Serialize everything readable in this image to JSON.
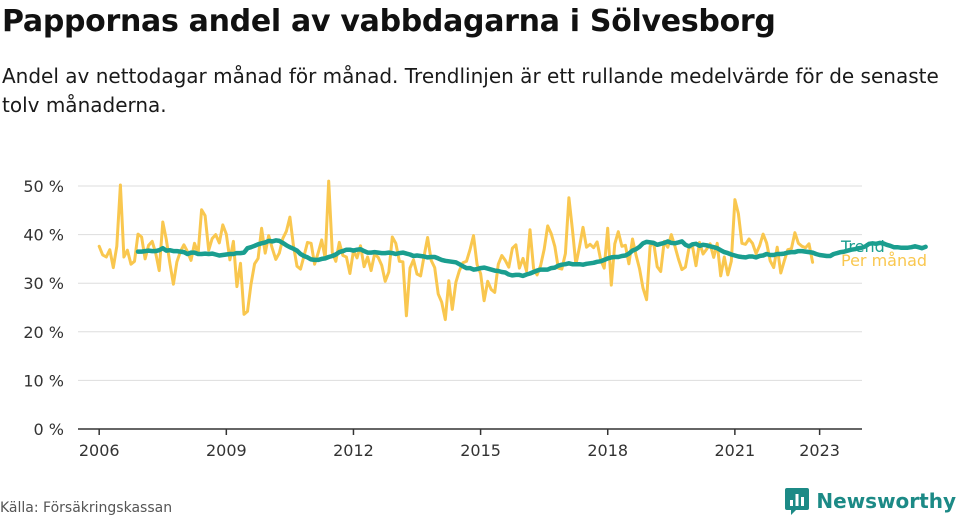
{
  "header": {
    "title": "Pappornas andel av vabbdagarna i Sölvesborg",
    "subtitle": "Andel av nettodagar månad för månad. Trendlinjen är ett rullande medelvärde för de senaste tolv månaderna."
  },
  "footer": {
    "source": "Källa: Försäkringskassan",
    "brand": "Newsworthy"
  },
  "colors": {
    "monthly": "#f9c74f",
    "trend": "#1a9e8f",
    "grid": "#dddddd",
    "axis": "#333333",
    "brand": "#1c8a86"
  },
  "chart_data": {
    "type": "line",
    "title": "Pappornas andel av vabbdagarna i Sölvesborg",
    "xlabel": "",
    "ylabel": "",
    "x_range": [
      2005.5,
      2024.0
    ],
    "ylim": [
      0,
      50
    ],
    "y_ticks": [
      0,
      10,
      20,
      30,
      40,
      50
    ],
    "y_tick_labels": [
      "0 %",
      "10 %",
      "20 %",
      "30 %",
      "40 %",
      "50 %"
    ],
    "x_ticks": [
      2006,
      2009,
      2012,
      2015,
      2018,
      2021,
      2023
    ],
    "x_tick_labels": [
      "2006",
      "2009",
      "2012",
      "2015",
      "2018",
      "2021",
      "2023"
    ],
    "grid": true,
    "legend": "right-end labels",
    "series": [
      {
        "name": "Per månad",
        "start": 2006.0,
        "step": 0.0833333,
        "values": [
          37.6,
          35.8,
          35.4,
          36.9,
          33.2,
          37.6,
          50.2,
          35.4,
          36.8,
          33.9,
          34.5,
          40.1,
          39.5,
          35.0,
          37.8,
          38.6,
          36.2,
          32.6,
          42.6,
          39.0,
          34.2,
          29.8,
          34.4,
          36.5,
          37.9,
          36.5,
          34.7,
          38.2,
          36.1,
          45.1,
          43.9,
          36.8,
          39.2,
          40.0,
          38.3,
          42.0,
          40.1,
          34.8,
          38.6,
          29.3,
          34.1,
          23.6,
          24.2,
          29.8,
          34.0,
          35.1,
          41.3,
          36.2,
          39.8,
          37.2,
          34.9,
          36.2,
          39.2,
          40.7,
          43.6,
          37.8,
          33.5,
          32.9,
          35.6,
          38.4,
          38.2,
          33.9,
          36.2,
          38.9,
          35.1,
          51.0,
          36.3,
          34.5,
          38.4,
          35.7,
          35.4,
          32.0,
          36.7,
          35.2,
          37.7,
          33.4,
          35.4,
          32.6,
          36.0,
          35.3,
          33.7,
          30.4,
          32.3,
          39.5,
          38.2,
          34.5,
          34.4,
          23.3,
          33.1,
          34.8,
          31.9,
          31.5,
          35.6,
          39.4,
          34.7,
          33.2,
          27.8,
          26.1,
          22.5,
          30.5,
          24.6,
          30.2,
          32.6,
          34.2,
          34.5,
          36.9,
          39.8,
          33.8,
          32.0,
          26.4,
          30.4,
          28.7,
          28.1,
          33.9,
          35.7,
          34.7,
          33.3,
          37.2,
          37.9,
          33.1,
          35.1,
          32.5,
          41.0,
          33.0,
          31.7,
          33.6,
          37.0,
          41.8,
          40.2,
          37.6,
          33.1,
          32.9,
          36.1,
          47.6,
          41.1,
          33.8,
          37.5,
          41.5,
          37.4,
          38.0,
          37.3,
          38.5,
          34.8,
          33.1,
          41.3,
          29.6,
          38.1,
          40.6,
          37.6,
          37.8,
          34.0,
          39.1,
          35.8,
          33.0,
          29.0,
          26.6,
          37.6,
          38.4,
          33.4,
          32.4,
          38.6,
          37.4,
          40.0,
          37.7,
          35.0,
          32.8,
          33.3,
          37.3,
          37.6,
          33.6,
          38.4,
          36.0,
          37.0,
          38.1,
          35.3,
          38.2,
          31.5,
          35.4,
          31.7,
          34.5,
          47.2,
          44.3,
          38.2,
          38.0,
          39.1,
          38.2,
          36.1,
          37.7,
          40.1,
          38.3,
          34.6,
          33.2,
          37.4,
          32.1,
          34.6,
          36.9,
          37.1,
          40.4,
          38.2,
          37.6,
          37.3,
          38.1,
          34.3
        ]
      },
      {
        "name": "Trend",
        "start": 2006.9167,
        "step": 0.0833333,
        "values": [
          36.5,
          36.5,
          36.6,
          36.7,
          36.6,
          36.6,
          36.8,
          37.2,
          36.7,
          36.8,
          36.6,
          36.6,
          36.5,
          36.4,
          36.0,
          36.3,
          36.3,
          36.0,
          36.0,
          36.1,
          36.0,
          36.1,
          35.9,
          35.7,
          35.8,
          35.9,
          36.0,
          36.0,
          36.2,
          36.2,
          36.3,
          37.2,
          37.4,
          37.7,
          38.0,
          38.2,
          38.4,
          38.7,
          38.6,
          38.8,
          38.7,
          38.3,
          37.8,
          37.4,
          37.1,
          36.7,
          36.0,
          35.6,
          35.3,
          34.9,
          34.8,
          34.8,
          35.0,
          35.1,
          35.4,
          35.6,
          35.9,
          36.4,
          36.6,
          36.9,
          36.9,
          36.7,
          36.9,
          37.0,
          36.6,
          36.3,
          36.3,
          36.4,
          36.3,
          36.2,
          36.2,
          36.3,
          36.2,
          36.0,
          36.2,
          36.3,
          36.1,
          35.9,
          35.6,
          35.7,
          35.6,
          35.5,
          35.3,
          35.4,
          35.4,
          35.1,
          34.8,
          34.6,
          34.5,
          34.4,
          34.3,
          33.9,
          33.5,
          33.1,
          33.1,
          32.8,
          32.9,
          33.1,
          33.2,
          33.0,
          32.8,
          32.6,
          32.5,
          32.3,
          32.2,
          31.8,
          31.6,
          31.7,
          31.7,
          31.5,
          31.8,
          32.0,
          32.3,
          32.6,
          32.8,
          32.8,
          32.8,
          33.1,
          33.2,
          33.6,
          33.8,
          33.9,
          34.1,
          33.9,
          33.9,
          33.9,
          33.8,
          34.0,
          34.1,
          34.2,
          34.4,
          34.5,
          34.8,
          35.1,
          35.3,
          35.4,
          35.4,
          35.6,
          35.7,
          36.1,
          36.7,
          37.0,
          37.5,
          38.2,
          38.5,
          38.4,
          38.3,
          37.9,
          38.1,
          38.3,
          38.6,
          38.3,
          38.2,
          38.4,
          38.6,
          37.9,
          37.6,
          38.0,
          38.1,
          37.7,
          37.9,
          37.8,
          37.6,
          37.4,
          37.2,
          36.8,
          36.4,
          36.2,
          35.9,
          35.7,
          35.5,
          35.4,
          35.3,
          35.5,
          35.5,
          35.3,
          35.6,
          35.7,
          36.0,
          35.8,
          35.8,
          36.0,
          36.0,
          36.1,
          36.3,
          36.4,
          36.4,
          36.6,
          36.6,
          36.5,
          36.4,
          36.3,
          36.0,
          35.8,
          35.7,
          35.6,
          35.6,
          36.0,
          36.2,
          36.4,
          36.5,
          36.7,
          36.9,
          37.0,
          37.2,
          37.3,
          37.6,
          38.1,
          38.2,
          38.1,
          38.3,
          38.2,
          37.9,
          37.7,
          37.4,
          37.4,
          37.3,
          37.3,
          37.3,
          37.4,
          37.6,
          37.4,
          37.2,
          37.5
        ]
      }
    ]
  }
}
